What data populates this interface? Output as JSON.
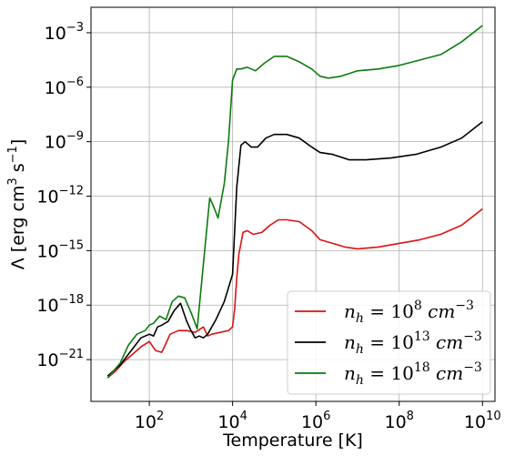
{
  "chart_data": {
    "type": "line",
    "title": "",
    "xlabel": "Temperature [K]",
    "ylabel_parts": {
      "pre": "Λ [erg cm",
      "sup1": "3",
      "mid": " s",
      "sup2": "−1",
      "post": "]"
    },
    "x_scale": "log",
    "y_scale": "log",
    "xlim_exp": [
      0.6,
      10.3
    ],
    "ylim_exp": [
      -23.3,
      -1.6
    ],
    "grid": true,
    "legend_placement": "lower-right",
    "x_ticks": [
      {
        "base": "10",
        "exp": "2",
        "value_exp": 2
      },
      {
        "base": "10",
        "exp": "4",
        "value_exp": 4
      },
      {
        "base": "10",
        "exp": "6",
        "value_exp": 6
      },
      {
        "base": "10",
        "exp": "8",
        "value_exp": 8
      },
      {
        "base": "10",
        "exp": "10",
        "value_exp": 10
      }
    ],
    "y_ticks": [
      {
        "base": "10",
        "exp": "−3",
        "value_exp": -3
      },
      {
        "base": "10",
        "exp": "−6",
        "value_exp": -6
      },
      {
        "base": "10",
        "exp": "−9",
        "value_exp": -9
      },
      {
        "base": "10",
        "exp": "−12",
        "value_exp": -12
      },
      {
        "base": "10",
        "exp": "−15",
        "value_exp": -15
      },
      {
        "base": "10",
        "exp": "−18",
        "value_exp": -18
      },
      {
        "base": "10",
        "exp": "−21",
        "value_exp": -21
      }
    ],
    "series": [
      {
        "legend": {
          "pre": "n",
          "sub": "h",
          "mid": " = 10",
          "sup": "8",
          "post": " cm",
          "sup2": "−3"
        },
        "color": "#dd1111",
        "points": [
          [
            1.0,
            -22.0
          ],
          [
            1.2,
            -21.6
          ],
          [
            1.4,
            -21.1
          ],
          [
            1.6,
            -20.7
          ],
          [
            1.8,
            -20.3
          ],
          [
            2.0,
            -20.0
          ],
          [
            2.15,
            -20.5
          ],
          [
            2.3,
            -20.6
          ],
          [
            2.5,
            -19.6
          ],
          [
            2.7,
            -19.4
          ],
          [
            2.9,
            -19.4
          ],
          [
            3.1,
            -19.5
          ],
          [
            3.3,
            -19.2
          ],
          [
            3.4,
            -19.7
          ],
          [
            3.5,
            -19.6
          ],
          [
            3.7,
            -19.5
          ],
          [
            3.9,
            -19.4
          ],
          [
            4.0,
            -19.2
          ],
          [
            4.05,
            -18.2
          ],
          [
            4.1,
            -16.5
          ],
          [
            4.15,
            -15.2
          ],
          [
            4.25,
            -14.0
          ],
          [
            4.35,
            -13.9
          ],
          [
            4.5,
            -14.1
          ],
          [
            4.7,
            -14.0
          ],
          [
            4.9,
            -13.6
          ],
          [
            5.1,
            -13.3
          ],
          [
            5.3,
            -13.3
          ],
          [
            5.6,
            -13.4
          ],
          [
            5.9,
            -13.9
          ],
          [
            6.1,
            -14.4
          ],
          [
            6.4,
            -14.6
          ],
          [
            6.7,
            -14.8
          ],
          [
            7.0,
            -14.9
          ],
          [
            7.5,
            -14.8
          ],
          [
            8.0,
            -14.6
          ],
          [
            8.5,
            -14.4
          ],
          [
            9.0,
            -14.1
          ],
          [
            9.5,
            -13.6
          ],
          [
            10.0,
            -12.7
          ]
        ]
      },
      {
        "legend": {
          "pre": "n",
          "sub": "h",
          "mid": " = 10",
          "sup": "13",
          "post": " cm",
          "sup2": "−3"
        },
        "color": "#000000",
        "points": [
          [
            1.0,
            -21.9
          ],
          [
            1.3,
            -21.3
          ],
          [
            1.6,
            -20.4
          ],
          [
            1.8,
            -19.8
          ],
          [
            2.0,
            -19.6
          ],
          [
            2.1,
            -19.7
          ],
          [
            2.2,
            -19.2
          ],
          [
            2.3,
            -19.1
          ],
          [
            2.45,
            -18.9
          ],
          [
            2.6,
            -18.3
          ],
          [
            2.75,
            -17.9
          ],
          [
            2.9,
            -18.9
          ],
          [
            3.0,
            -19.4
          ],
          [
            3.1,
            -19.8
          ],
          [
            3.2,
            -19.7
          ],
          [
            3.3,
            -19.8
          ],
          [
            3.4,
            -19.6
          ],
          [
            3.6,
            -18.8
          ],
          [
            3.8,
            -17.8
          ],
          [
            4.0,
            -16.3
          ],
          [
            4.1,
            -11.5
          ],
          [
            4.2,
            -9.2
          ],
          [
            4.3,
            -9.0
          ],
          [
            4.45,
            -9.3
          ],
          [
            4.6,
            -9.3
          ],
          [
            4.8,
            -8.8
          ],
          [
            5.0,
            -8.6
          ],
          [
            5.3,
            -8.6
          ],
          [
            5.6,
            -8.8
          ],
          [
            5.9,
            -9.3
          ],
          [
            6.1,
            -9.6
          ],
          [
            6.4,
            -9.7
          ],
          [
            6.8,
            -10.0
          ],
          [
            7.2,
            -10.0
          ],
          [
            7.8,
            -9.9
          ],
          [
            8.4,
            -9.7
          ],
          [
            9.0,
            -9.3
          ],
          [
            9.5,
            -8.8
          ],
          [
            10.0,
            -7.9
          ]
        ]
      },
      {
        "legend": {
          "pre": "n",
          "sub": "h",
          "mid": " = 10",
          "sup": "18",
          "post": " cm",
          "sup2": "−3"
        },
        "color": "#0c7a0c",
        "points": [
          [
            1.0,
            -22.0
          ],
          [
            1.3,
            -21.2
          ],
          [
            1.5,
            -20.2
          ],
          [
            1.7,
            -19.6
          ],
          [
            1.9,
            -19.4
          ],
          [
            2.0,
            -19.1
          ],
          [
            2.1,
            -19.0
          ],
          [
            2.25,
            -18.6
          ],
          [
            2.4,
            -18.8
          ],
          [
            2.55,
            -17.8
          ],
          [
            2.7,
            -17.5
          ],
          [
            2.85,
            -17.6
          ],
          [
            3.0,
            -18.4
          ],
          [
            3.15,
            -19.3
          ],
          [
            3.3,
            -15.7
          ],
          [
            3.45,
            -12.1
          ],
          [
            3.55,
            -12.6
          ],
          [
            3.65,
            -13.2
          ],
          [
            3.8,
            -11.3
          ],
          [
            3.9,
            -9.0
          ],
          [
            4.0,
            -5.6
          ],
          [
            4.1,
            -5.0
          ],
          [
            4.2,
            -5.0
          ],
          [
            4.35,
            -4.9
          ],
          [
            4.55,
            -5.1
          ],
          [
            4.75,
            -4.7
          ],
          [
            5.0,
            -4.3
          ],
          [
            5.3,
            -4.3
          ],
          [
            5.6,
            -4.6
          ],
          [
            5.9,
            -5.0
          ],
          [
            6.1,
            -5.4
          ],
          [
            6.3,
            -5.5
          ],
          [
            6.6,
            -5.4
          ],
          [
            7.0,
            -5.1
          ],
          [
            7.5,
            -5.0
          ],
          [
            8.0,
            -4.8
          ],
          [
            8.5,
            -4.5
          ],
          [
            9.0,
            -4.2
          ],
          [
            9.5,
            -3.5
          ],
          [
            10.0,
            -2.6
          ]
        ]
      }
    ]
  }
}
